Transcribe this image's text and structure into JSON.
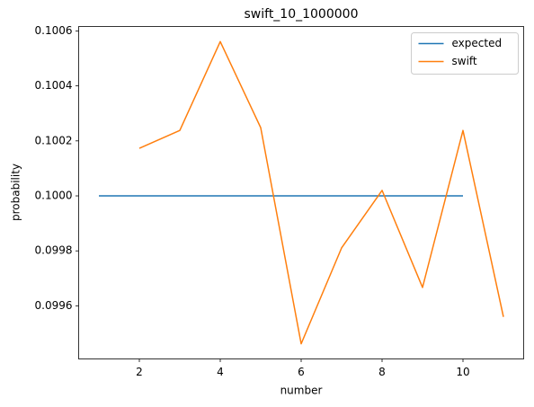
{
  "chart_data": {
    "type": "line",
    "title": "swift_10_1000000",
    "x_label": "number",
    "y_label": "probability",
    "x": [
      1,
      2,
      3,
      4,
      5,
      6,
      7,
      8,
      9,
      10,
      11
    ],
    "series": [
      {
        "name": "expected",
        "color": "#1f77b4",
        "values": [
          0.1,
          0.1,
          0.1,
          0.1,
          0.1,
          0.1,
          0.1,
          0.1,
          0.1,
          0.1,
          null
        ]
      },
      {
        "name": "swift",
        "color": "#ff7f0e",
        "values": [
          null,
          0.100173,
          0.100238,
          0.100561,
          0.100248,
          0.099462,
          0.099811,
          0.10002,
          0.099667,
          0.100238,
          0.09956
        ]
      }
    ],
    "xlim": [
      0.5,
      11.5
    ],
    "xticks": [
      2,
      4,
      6,
      8,
      10
    ],
    "ylim": [
      0.099407,
      0.100616
    ],
    "yticks": [
      0.0996,
      0.0998,
      {
        "value": 0.1,
        "label": "0.1000"
      },
      0.1002,
      0.1004,
      0.1006
    ],
    "legend": "upper right",
    "grid": false
  }
}
